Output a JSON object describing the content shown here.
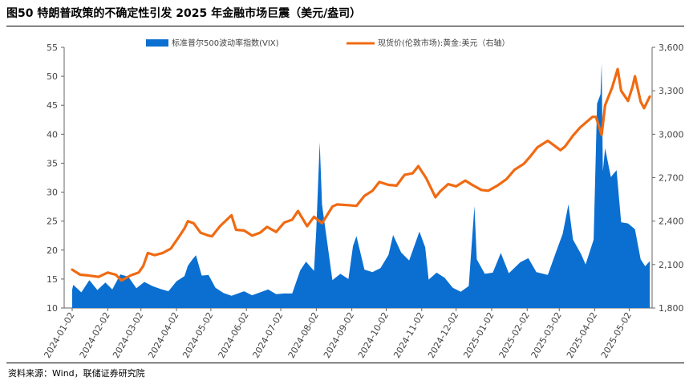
{
  "title": "图50 特朗普政策的不确定性引发 2025 年金融市场巨震（美元/盎司）",
  "source": "资料来源：Wind，联储证券研究院",
  "colors": {
    "vix": "#0A6FD1",
    "gold": "#F06A12",
    "axis": "#666666"
  },
  "chart_data": {
    "type": "area+line",
    "title": "图50 特朗普政策的不确定性引发 2025 年金融市场巨震（美元/盎司）",
    "x_range": [
      "2023-12-26",
      "2025-05-22"
    ],
    "x_ticks": [
      "2024-01-02",
      "2024-02-02",
      "2024-03-02",
      "2024-04-02",
      "2024-05-02",
      "2024-06-02",
      "2024-07-02",
      "2024-08-02",
      "2024-09-02",
      "2024-10-02",
      "2024-11-02",
      "2024-12-02",
      "2025-01-02",
      "2025-02-02",
      "2025-03-02",
      "2025-04-02",
      "2025-05-02"
    ],
    "y_left": {
      "ticks": [
        "10",
        "15",
        "20",
        "25",
        "30",
        "35",
        "40",
        "45",
        "50",
        "55"
      ],
      "range": [
        10,
        55
      ]
    },
    "y_right": {
      "ticks": [
        "1,800",
        "2,100",
        "2,400",
        "2,700",
        "3,000",
        "3,300",
        "3,600"
      ],
      "range": [
        1800,
        3600
      ]
    },
    "legend": "top",
    "series": [
      {
        "name": "标准普尔500波动率指数(VIX)",
        "type": "area",
        "axis": "left",
        "points": [
          [
            "2024-01-02",
            13.2
          ],
          [
            "2024-01-03",
            14.0
          ],
          [
            "2024-01-10",
            12.7
          ],
          [
            "2024-01-17",
            14.8
          ],
          [
            "2024-01-24",
            13.1
          ],
          [
            "2024-01-31",
            14.4
          ],
          [
            "2024-02-06",
            13.2
          ],
          [
            "2024-02-13",
            15.8
          ],
          [
            "2024-02-20",
            15.4
          ],
          [
            "2024-02-27",
            13.4
          ],
          [
            "2024-03-05",
            14.5
          ],
          [
            "2024-03-12",
            13.8
          ],
          [
            "2024-03-19",
            13.3
          ],
          [
            "2024-03-26",
            12.9
          ],
          [
            "2024-04-02",
            14.6
          ],
          [
            "2024-04-09",
            15.5
          ],
          [
            "2024-04-12",
            17.3
          ],
          [
            "2024-04-16",
            18.4
          ],
          [
            "2024-04-19",
            19.1
          ],
          [
            "2024-04-24",
            15.6
          ],
          [
            "2024-04-30",
            15.7
          ],
          [
            "2024-05-06",
            13.5
          ],
          [
            "2024-05-13",
            12.6
          ],
          [
            "2024-05-20",
            12.1
          ],
          [
            "2024-05-24",
            12.4
          ],
          [
            "2024-05-31",
            12.9
          ],
          [
            "2024-06-07",
            12.2
          ],
          [
            "2024-06-14",
            12.7
          ],
          [
            "2024-06-21",
            13.2
          ],
          [
            "2024-06-28",
            12.4
          ],
          [
            "2024-07-05",
            12.5
          ],
          [
            "2024-07-12",
            12.5
          ],
          [
            "2024-07-19",
            16.5
          ],
          [
            "2024-07-24",
            18.0
          ],
          [
            "2024-07-31",
            16.4
          ],
          [
            "2024-08-02",
            23.4
          ],
          [
            "2024-08-05",
            38.6
          ],
          [
            "2024-08-07",
            27.8
          ],
          [
            "2024-08-12",
            20.7
          ],
          [
            "2024-08-16",
            14.8
          ],
          [
            "2024-08-23",
            15.9
          ],
          [
            "2024-08-30",
            15.0
          ],
          [
            "2024-09-03",
            20.7
          ],
          [
            "2024-09-06",
            22.4
          ],
          [
            "2024-09-13",
            16.6
          ],
          [
            "2024-09-20",
            16.2
          ],
          [
            "2024-09-27",
            16.9
          ],
          [
            "2024-10-04",
            19.2
          ],
          [
            "2024-10-08",
            22.6
          ],
          [
            "2024-10-15",
            19.6
          ],
          [
            "2024-10-22",
            18.2
          ],
          [
            "2024-10-31",
            23.2
          ],
          [
            "2024-11-05",
            20.5
          ],
          [
            "2024-11-08",
            14.9
          ],
          [
            "2024-11-15",
            16.1
          ],
          [
            "2024-11-22",
            15.2
          ],
          [
            "2024-11-29",
            13.5
          ],
          [
            "2024-12-06",
            12.8
          ],
          [
            "2024-12-13",
            13.8
          ],
          [
            "2024-12-18",
            27.6
          ],
          [
            "2024-12-20",
            18.4
          ],
          [
            "2024-12-27",
            15.9
          ],
          [
            "2025-01-03",
            16.1
          ],
          [
            "2025-01-10",
            19.5
          ],
          [
            "2025-01-17",
            16.0
          ],
          [
            "2025-01-27",
            17.9
          ],
          [
            "2025-02-03",
            18.6
          ],
          [
            "2025-02-10",
            16.2
          ],
          [
            "2025-02-20",
            15.7
          ],
          [
            "2025-02-27",
            19.6
          ],
          [
            "2025-03-05",
            22.8
          ],
          [
            "2025-03-10",
            27.9
          ],
          [
            "2025-03-14",
            21.8
          ],
          [
            "2025-03-21",
            19.3
          ],
          [
            "2025-03-25",
            17.5
          ],
          [
            "2025-04-01",
            21.8
          ],
          [
            "2025-04-04",
            45.3
          ],
          [
            "2025-04-07",
            46.9
          ],
          [
            "2025-04-08",
            52.3
          ],
          [
            "2025-04-09",
            33.6
          ],
          [
            "2025-04-11",
            37.6
          ],
          [
            "2025-04-16",
            32.6
          ],
          [
            "2025-04-21",
            33.8
          ],
          [
            "2025-04-25",
            24.8
          ],
          [
            "2025-05-01",
            24.6
          ],
          [
            "2025-05-07",
            23.6
          ],
          [
            "2025-05-12",
            18.4
          ],
          [
            "2025-05-16",
            17.2
          ],
          [
            "2025-05-20",
            18.1
          ]
        ]
      },
      {
        "name": "现货价(伦敦市场):黄金:美元（右轴）",
        "type": "line",
        "axis": "right",
        "points": [
          [
            "2024-01-02",
            2065
          ],
          [
            "2024-01-09",
            2030
          ],
          [
            "2024-01-16",
            2025
          ],
          [
            "2024-01-25",
            2015
          ],
          [
            "2024-02-02",
            2045
          ],
          [
            "2024-02-09",
            2030
          ],
          [
            "2024-02-14",
            1990
          ],
          [
            "2024-02-22",
            2025
          ],
          [
            "2024-02-29",
            2045
          ],
          [
            "2024-03-04",
            2090
          ],
          [
            "2024-03-08",
            2180
          ],
          [
            "2024-03-14",
            2165
          ],
          [
            "2024-03-21",
            2180
          ],
          [
            "2024-03-28",
            2210
          ],
          [
            "2024-04-04",
            2290
          ],
          [
            "2024-04-09",
            2350
          ],
          [
            "2024-04-12",
            2400
          ],
          [
            "2024-04-17",
            2385
          ],
          [
            "2024-04-23",
            2320
          ],
          [
            "2024-04-30",
            2300
          ],
          [
            "2024-05-03",
            2295
          ],
          [
            "2024-05-10",
            2365
          ],
          [
            "2024-05-20",
            2440
          ],
          [
            "2024-05-24",
            2340
          ],
          [
            "2024-05-31",
            2335
          ],
          [
            "2024-06-07",
            2300
          ],
          [
            "2024-06-14",
            2320
          ],
          [
            "2024-06-20",
            2360
          ],
          [
            "2024-06-28",
            2325
          ],
          [
            "2024-07-05",
            2390
          ],
          [
            "2024-07-12",
            2410
          ],
          [
            "2024-07-17",
            2470
          ],
          [
            "2024-07-25",
            2365
          ],
          [
            "2024-07-31",
            2430
          ],
          [
            "2024-08-07",
            2385
          ],
          [
            "2024-08-16",
            2500
          ],
          [
            "2024-08-20",
            2515
          ],
          [
            "2024-08-30",
            2510
          ],
          [
            "2024-09-06",
            2505
          ],
          [
            "2024-09-13",
            2575
          ],
          [
            "2024-09-20",
            2610
          ],
          [
            "2024-09-26",
            2670
          ],
          [
            "2024-10-04",
            2650
          ],
          [
            "2024-10-11",
            2645
          ],
          [
            "2024-10-18",
            2720
          ],
          [
            "2024-10-25",
            2730
          ],
          [
            "2024-10-30",
            2780
          ],
          [
            "2024-11-06",
            2695
          ],
          [
            "2024-11-14",
            2565
          ],
          [
            "2024-11-18",
            2605
          ],
          [
            "2024-11-25",
            2655
          ],
          [
            "2024-12-02",
            2640
          ],
          [
            "2024-12-10",
            2680
          ],
          [
            "2024-12-16",
            2650
          ],
          [
            "2024-12-24",
            2615
          ],
          [
            "2024-12-30",
            2610
          ],
          [
            "2025-01-07",
            2645
          ],
          [
            "2025-01-15",
            2690
          ],
          [
            "2025-01-22",
            2755
          ],
          [
            "2025-01-30",
            2795
          ],
          [
            "2025-02-04",
            2840
          ],
          [
            "2025-02-11",
            2910
          ],
          [
            "2025-02-20",
            2955
          ],
          [
            "2025-02-26",
            2920
          ],
          [
            "2025-03-03",
            2890
          ],
          [
            "2025-03-07",
            2915
          ],
          [
            "2025-03-14",
            2990
          ],
          [
            "2025-03-20",
            3045
          ],
          [
            "2025-03-31",
            3120
          ],
          [
            "2025-04-03",
            3120
          ],
          [
            "2025-04-08",
            2995
          ],
          [
            "2025-04-11",
            3200
          ],
          [
            "2025-04-17",
            3320
          ],
          [
            "2025-04-22",
            3450
          ],
          [
            "2025-04-25",
            3300
          ],
          [
            "2025-05-01",
            3230
          ],
          [
            "2025-05-05",
            3330
          ],
          [
            "2025-05-07",
            3400
          ],
          [
            "2025-05-12",
            3225
          ],
          [
            "2025-05-15",
            3180
          ],
          [
            "2025-05-20",
            3260
          ]
        ]
      }
    ]
  }
}
